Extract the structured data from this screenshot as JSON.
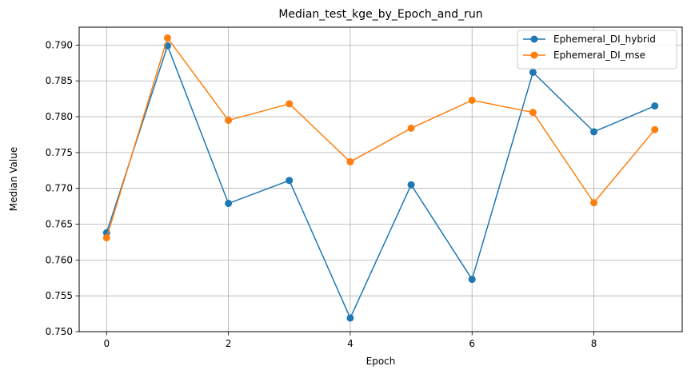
{
  "chart_data": {
    "type": "line",
    "title": "Median_test_kge_by_Epoch_and_run",
    "xlabel": "Epoch",
    "ylabel": "Median Value",
    "xlim": [
      -0.45,
      9.45
    ],
    "ylim": [
      0.75,
      0.7925
    ],
    "x_ticks": [
      "0",
      "2",
      "4",
      "6",
      "8"
    ],
    "y_ticks": [
      "0.750",
      "0.755",
      "0.760",
      "0.765",
      "0.770",
      "0.775",
      "0.780",
      "0.785",
      "0.790"
    ],
    "grid": true,
    "legend_position": "top-right",
    "x": [
      0,
      1,
      2,
      3,
      4,
      5,
      6,
      7,
      8,
      9
    ],
    "series": [
      {
        "name": "Ephemeral_DI_hybrid",
        "color": "#1f77b4",
        "values": [
          0.7638,
          0.7899,
          0.7679,
          0.7711,
          0.7519,
          0.7705,
          0.7573,
          0.7862,
          0.7779,
          0.7815
        ]
      },
      {
        "name": "Ephemeral_DI_mse",
        "color": "#ff7f0e",
        "values": [
          0.7631,
          0.791,
          0.7795,
          0.7818,
          0.7737,
          0.7784,
          0.7823,
          0.7806,
          0.768,
          0.7782
        ]
      }
    ]
  }
}
